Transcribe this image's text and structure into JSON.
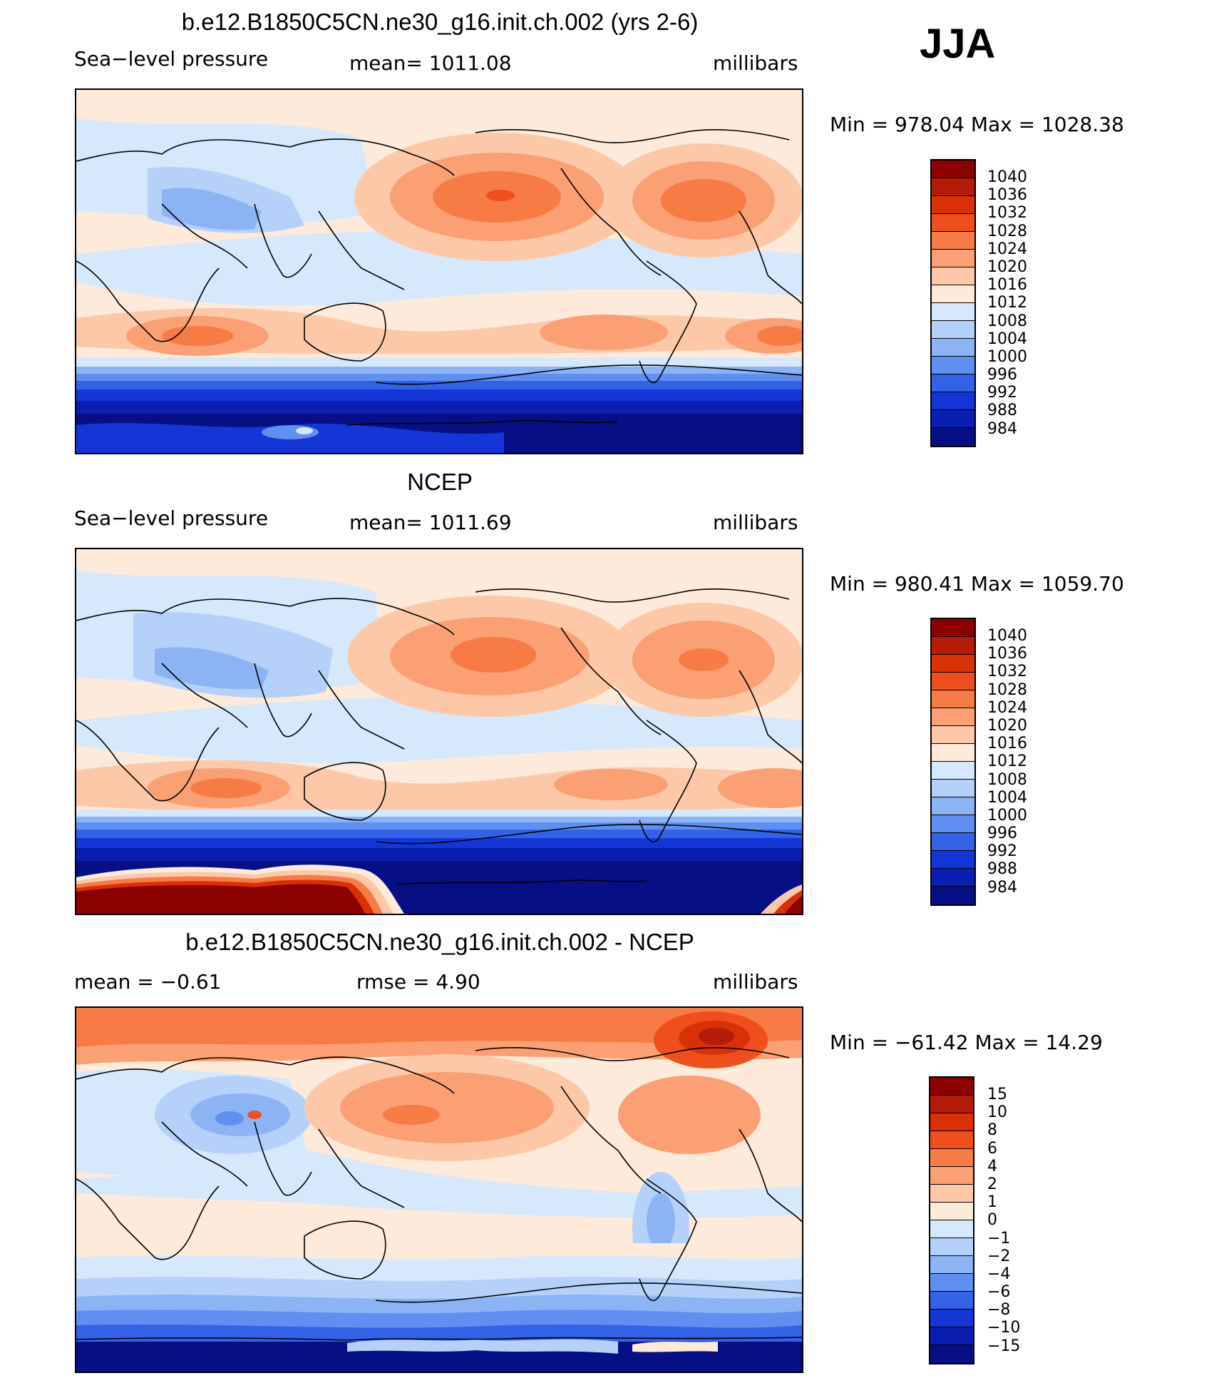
{
  "season": "JJA",
  "panels": [
    {
      "id": "model",
      "title": "b.e12.B1850C5CN.ne30_g16.init.ch.002 (yrs 2-6)",
      "left_label": "Sea−level pressure",
      "center_label": "mean=  1011.08",
      "right_label": "millibars",
      "minmax": "Min  =  978.04  Max  =  1028.38",
      "colorbar_labels": [
        "1040",
        "1036",
        "1032",
        "1028",
        "1024",
        "1020",
        "1016",
        "1012",
        "1008",
        "1004",
        "1000",
        "996",
        "992",
        "988",
        "984"
      ]
    },
    {
      "id": "obs",
      "title": "NCEP",
      "left_label": "Sea−level pressure",
      "center_label": "mean=  1011.69",
      "right_label": "millibars",
      "minmax": "Min  =  980.41  Max  =  1059.70",
      "colorbar_labels": [
        "1040",
        "1036",
        "1032",
        "1028",
        "1024",
        "1020",
        "1016",
        "1012",
        "1008",
        "1004",
        "1000",
        "996",
        "992",
        "988",
        "984"
      ]
    },
    {
      "id": "diff",
      "title": "b.e12.B1850C5CN.ne30_g16.init.ch.002 - NCEP",
      "left_label": "mean  =     −0.61",
      "center_label": "rmse  =     4.90",
      "right_label": "millibars",
      "minmax": "Min  =  −61.42  Max  =    14.29",
      "colorbar_labels": [
        "15",
        "10",
        "8",
        "6",
        "4",
        "2",
        "1",
        "0",
        "−1",
        "−2",
        "−4",
        "−6",
        "−8",
        "−10",
        "−15"
      ]
    }
  ],
  "colors": {
    "colorbar_pressure": [
      "#8b0000",
      "#b41c07",
      "#d93006",
      "#ef4f1d",
      "#f77b45",
      "#fb9f75",
      "#fcc8a8",
      "#fdeadb",
      "#d6e8fb",
      "#b5d1fa",
      "#8cb4f5",
      "#5f8ff0",
      "#3462e7",
      "#1436d6",
      "#0a1fb2",
      "#061084"
    ],
    "colorbar_diff": [
      "#8b0000",
      "#b41c07",
      "#d93006",
      "#ef4f1d",
      "#f77b45",
      "#fb9f75",
      "#fcc8a8",
      "#fdeadb",
      "#d6e8fb",
      "#b5d1fa",
      "#8cb4f5",
      "#5f8ff0",
      "#3462e7",
      "#1436d6",
      "#0a1fb2",
      "#061084"
    ]
  }
}
